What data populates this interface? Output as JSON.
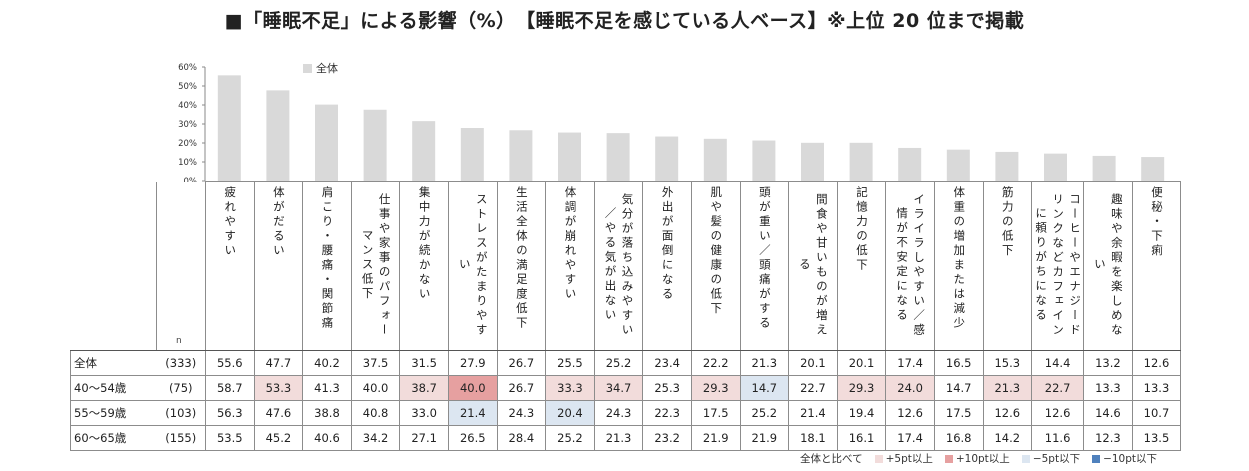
{
  "title": "■「睡眠不足」による影響（%）　【睡眠不足を感じている人ベース】※上位 20 位まで掲載",
  "colors": {
    "bar": "#d9d9d9",
    "up5": "#f2dcdb",
    "up10": "#e6a0a0",
    "down5": "#dce6f1",
    "down10": "#4f81bd"
  },
  "n_label": "n",
  "categories": [
    "疲れやすい",
    "体がだるい",
    "肩こり・腰痛・関節痛",
    "仕事や家事のパフォーマンス低下",
    "集中力が続かない",
    "ストレスがたまりやすい",
    "生活全体の満足度低下",
    "体調が崩れやすい",
    "気分が落ち込みやすい／やる気が出ない",
    "外出が面倒になる",
    "肌や髪の健康の低下",
    "頭が重い／頭痛がする",
    "間食や甘いものが増える",
    "記憶力の低下",
    "イライラしやすい／感情が不安定になる",
    "体重の増加または減少",
    "筋力の低下",
    "コーヒーやエナジードリンクなどカフェインに頼りがちになる",
    "趣味や余暇を楽しめない",
    "便秘・下痢"
  ],
  "header_texts": [
    "疲れやすい",
    "体がだるい",
    "肩こり・腰痛・関節痛",
    "仕事や家事のパフォーマンス低下",
    "集中力が続かない",
    "ストレスがたまりやすい",
    "生活全体の満足度低下",
    "体調が崩れやすい",
    "気分が落ち込みやすい／やる気が出ない",
    "外出が面倒になる",
    "肌や髪の健康の低下",
    "頭が重い／頭痛がする",
    "間食や甘いものが増える",
    "記憶力の低下",
    "イライラしやすい／感情が不安定になる",
    "体重の増加または減少",
    "筋力の低下",
    "コーヒーやエナジードリンクなどカフェインに頼りがちになる",
    "趣味や余暇を楽しめない",
    "便秘・下痢"
  ],
  "rows": [
    {
      "label": "全体",
      "n": "(333)",
      "values": [
        "55.6",
        "47.7",
        "40.2",
        "37.5",
        "31.5",
        "27.9",
        "26.7",
        "25.5",
        "25.2",
        "23.4",
        "22.2",
        "21.3",
        "20.1",
        "20.1",
        "17.4",
        "16.5",
        "15.3",
        "14.4",
        "13.2",
        "12.6"
      ],
      "highlight": [
        "",
        "",
        "",
        "",
        "",
        "",
        "",
        "",
        "",
        "",
        "",
        "",
        "",
        "",
        "",
        "",
        "",
        "",
        "",
        ""
      ]
    },
    {
      "label": "40〜54歳",
      "n": "(75)",
      "values": [
        "58.7",
        "53.3",
        "41.3",
        "40.0",
        "38.7",
        "40.0",
        "26.7",
        "33.3",
        "34.7",
        "25.3",
        "29.3",
        "14.7",
        "22.7",
        "29.3",
        "24.0",
        "14.7",
        "21.3",
        "22.7",
        "13.3",
        "13.3"
      ],
      "highlight": [
        "",
        "up5",
        "",
        "",
        "up5",
        "up10",
        "",
        "up5",
        "up5",
        "",
        "up5",
        "down5",
        "",
        "up5",
        "up5",
        "",
        "up5",
        "up5",
        "",
        ""
      ]
    },
    {
      "label": "55〜59歳",
      "n": "(103)",
      "values": [
        "56.3",
        "47.6",
        "38.8",
        "40.8",
        "33.0",
        "21.4",
        "24.3",
        "20.4",
        "24.3",
        "22.3",
        "17.5",
        "25.2",
        "21.4",
        "19.4",
        "12.6",
        "17.5",
        "12.6",
        "12.6",
        "14.6",
        "10.7"
      ],
      "highlight": [
        "",
        "",
        "",
        "",
        "",
        "down5",
        "",
        "down5",
        "",
        "",
        "",
        "",
        "",
        "",
        "",
        "",
        "",
        "",
        "",
        ""
      ]
    },
    {
      "label": "60〜65歳",
      "n": "(155)",
      "values": [
        "53.5",
        "45.2",
        "40.6",
        "34.2",
        "27.1",
        "26.5",
        "28.4",
        "25.2",
        "21.3",
        "23.2",
        "21.9",
        "21.9",
        "18.1",
        "16.1",
        "17.4",
        "16.8",
        "14.2",
        "11.6",
        "12.3",
        "13.5"
      ],
      "highlight": [
        "",
        "",
        "",
        "",
        "",
        "",
        "",
        "",
        "",
        "",
        "",
        "",
        "",
        "",
        "",
        "",
        "",
        "",
        "",
        ""
      ]
    }
  ],
  "legend_bottom": {
    "intro": "全体と比べて",
    "items": [
      {
        "key": "up5",
        "label": "+5pt以上"
      },
      {
        "key": "up10",
        "label": "+10pt以上"
      },
      {
        "key": "down5",
        "label": "−5pt以下"
      },
      {
        "key": "down10",
        "label": "−10pt以下"
      }
    ]
  },
  "chart_data": {
    "type": "bar",
    "categories": [
      "疲れやすい",
      "体がだるい",
      "肩こり・腰痛・関節痛",
      "仕事や家事のパフォーマンス低下",
      "集中力が続かない",
      "ストレスがたまりやすい",
      "生活全体の満足度低下",
      "体調が崩れやすい",
      "気分が落ち込みやすい／やる気が出ない",
      "外出が面倒になる",
      "肌や髪の健康の低下",
      "頭が重い／頭痛がする",
      "間食や甘いものが増える",
      "記憶力の低下",
      "イライラしやすい／感情が不安定になる",
      "体重の増加または減少",
      "筋力の低下",
      "コーヒーやエナジードリンクなどカフェインに頼りがちになる",
      "趣味や余暇を楽しめない",
      "便秘・下痢"
    ],
    "series": [
      {
        "name": "全体",
        "values": [
          55.6,
          47.7,
          40.2,
          37.5,
          31.5,
          27.9,
          26.7,
          25.5,
          25.2,
          23.4,
          22.2,
          21.3,
          20.1,
          20.1,
          17.4,
          16.5,
          15.3,
          14.4,
          13.2,
          12.6
        ]
      }
    ],
    "yticks": [
      "0%",
      "10%",
      "20%",
      "30%",
      "40%",
      "50%",
      "60%"
    ],
    "ylim": [
      0,
      60
    ],
    "legend": "top-left",
    "grid": false
  }
}
